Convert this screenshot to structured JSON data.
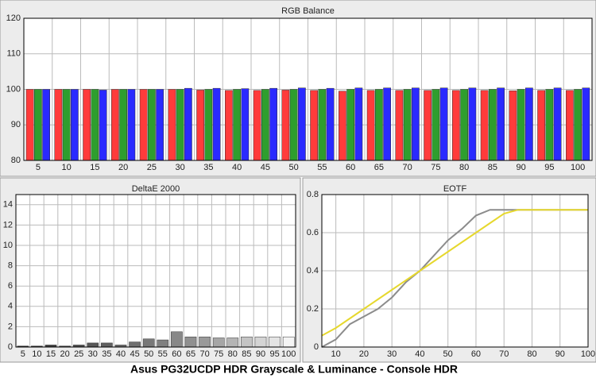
{
  "chart_data": [
    {
      "type": "bar",
      "title": "RGB Balance",
      "categories": [
        "5",
        "10",
        "15",
        "20",
        "25",
        "30",
        "35",
        "40",
        "45",
        "50",
        "55",
        "60",
        "65",
        "70",
        "75",
        "80",
        "85",
        "90",
        "95",
        "100"
      ],
      "series": [
        {
          "color": "#ff3b3b",
          "values": [
            100,
            100,
            100,
            100,
            100,
            100,
            99.8,
            99.7,
            99.7,
            99.8,
            99.7,
            99.5,
            99.7,
            99.7,
            99.7,
            99.7,
            99.7,
            99.6,
            99.7,
            99.7
          ]
        },
        {
          "color": "#2e9e2e",
          "values": [
            100,
            100,
            100,
            100,
            100,
            100,
            100,
            100,
            100,
            100,
            100,
            100,
            100,
            100,
            100,
            100,
            100,
            100,
            100,
            100
          ]
        },
        {
          "color": "#2a2aff",
          "values": [
            100,
            100,
            99.8,
            100,
            100,
            100.3,
            100.3,
            100.2,
            100.3,
            100.4,
            100.3,
            100.4,
            100.4,
            100.4,
            100.4,
            100.4,
            100.4,
            100.4,
            100.4,
            100.4
          ]
        }
      ],
      "ylim": [
        80,
        120
      ],
      "yticks": [
        80,
        90,
        100,
        110,
        120
      ],
      "grid": true
    },
    {
      "type": "bar",
      "title": "DeltaE 2000",
      "categories": [
        "5",
        "10",
        "15",
        "20",
        "25",
        "30",
        "35",
        "40",
        "45",
        "50",
        "55",
        "60",
        "65",
        "70",
        "75",
        "80",
        "85",
        "90",
        "95",
        "100"
      ],
      "values": [
        0.1,
        0.1,
        0.2,
        0.1,
        0.2,
        0.4,
        0.4,
        0.2,
        0.5,
        0.8,
        0.7,
        1.5,
        1.0,
        1.0,
        0.9,
        0.9,
        1.0,
        1.0,
        1.0,
        1.0
      ],
      "colors": [
        "#303030",
        "#383838",
        "#404040",
        "#484848",
        "#505050",
        "#585858",
        "#606060",
        "#686868",
        "#707070",
        "#787878",
        "#808080",
        "#888888",
        "#909090",
        "#9a9a9a",
        "#a6a6a6",
        "#b4b4b4",
        "#c4c4c4",
        "#d4d4d4",
        "#e4e4e4",
        "#f4f4f4"
      ],
      "ylim": [
        0,
        15
      ],
      "yticks": [
        0,
        2,
        4,
        6,
        8,
        10,
        12,
        14
      ],
      "grid": true
    },
    {
      "type": "line",
      "title": "EOTF",
      "x": [
        5,
        10,
        15,
        20,
        25,
        30,
        35,
        40,
        45,
        50,
        55,
        60,
        65,
        70,
        75,
        80,
        85,
        90,
        95,
        100
      ],
      "series": [
        {
          "color": "#8c8c8c",
          "values": [
            0,
            0.04,
            0.12,
            0.16,
            0.2,
            0.26,
            0.34,
            0.4,
            0.48,
            0.56,
            0.62,
            0.69,
            0.72,
            0.72,
            0.72,
            0.72,
            0.72,
            0.72,
            0.72,
            0.72
          ]
        },
        {
          "color": "#e6d82e",
          "values": [
            0.06,
            0.1,
            0.15,
            0.2,
            0.25,
            0.3,
            0.35,
            0.4,
            0.45,
            0.5,
            0.55,
            0.6,
            0.65,
            0.7,
            0.72,
            0.72,
            0.72,
            0.72,
            0.72,
            0.72
          ]
        }
      ],
      "xlim": [
        5,
        100
      ],
      "xticks": [
        10,
        20,
        30,
        40,
        50,
        60,
        70,
        80,
        90,
        100
      ],
      "ylim": [
        0,
        0.8
      ],
      "yticks": [
        0,
        0.2,
        0.4,
        0.6,
        0.8
      ],
      "grid": true
    }
  ],
  "caption": "Asus PG32UCDP HDR Grayscale & Luminance - Console HDR"
}
